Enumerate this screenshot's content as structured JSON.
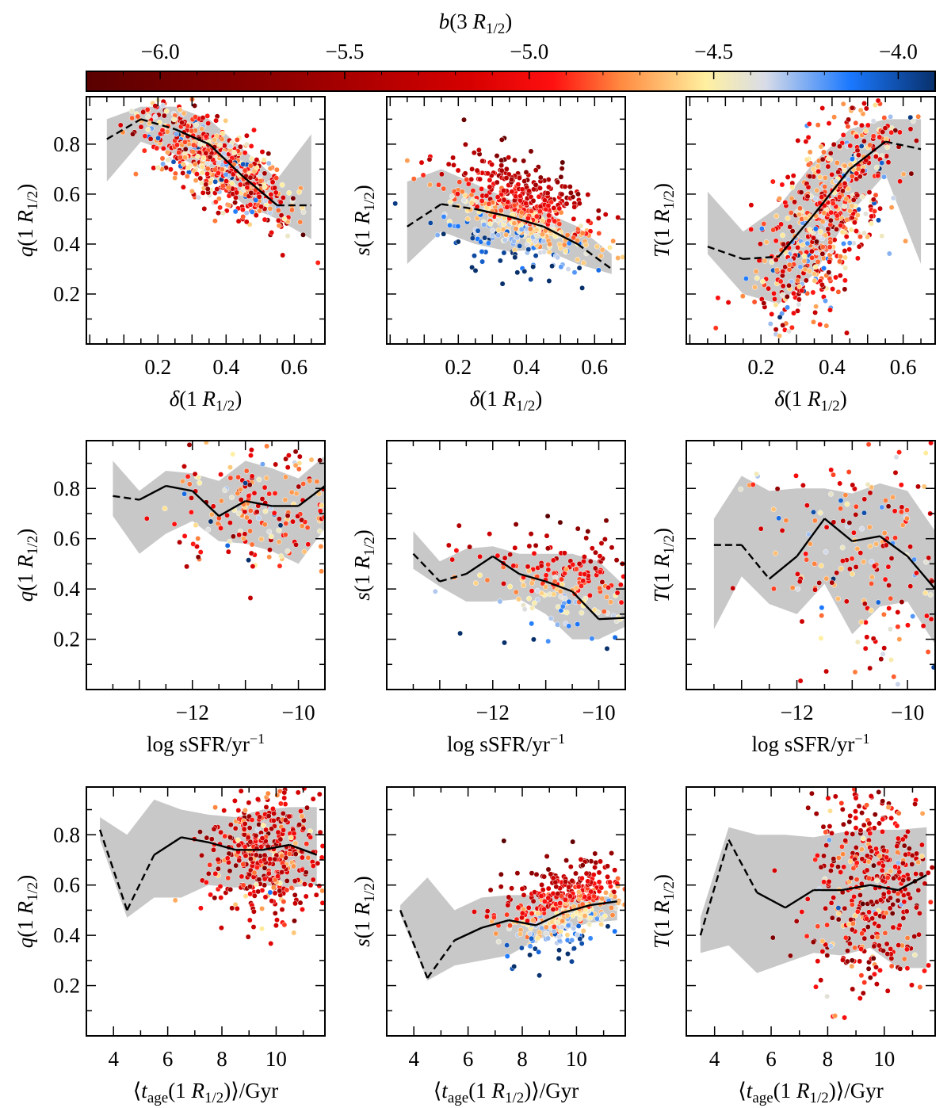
{
  "colorbar": {
    "label": "b(3 R1/2)",
    "label_parts": {
      "func": "b",
      "arg_num": "3 ",
      "arg_var": "R",
      "sub": "1/2"
    },
    "range": [
      -6.2,
      -3.9
    ],
    "ticks": [
      -6.0,
      -5.5,
      -5.0,
      -4.5,
      -4.0
    ],
    "tick_labels": [
      "−6.0",
      "−5.5",
      "−5.0",
      "−4.5",
      "−4.0"
    ],
    "colormap_stops": [
      {
        "v": 0.0,
        "c": "#5a0000"
      },
      {
        "v": 0.22,
        "c": "#8c0000"
      },
      {
        "v": 0.45,
        "c": "#d60000"
      },
      {
        "v": 0.55,
        "c": "#ff1010"
      },
      {
        "v": 0.63,
        "c": "#ff8a40"
      },
      {
        "v": 0.73,
        "c": "#fff0a0"
      },
      {
        "v": 0.8,
        "c": "#d8dce8"
      },
      {
        "v": 0.9,
        "c": "#1a78ff"
      },
      {
        "v": 1.0,
        "c": "#08306b"
      }
    ]
  },
  "chart_data": [
    {
      "type": "scatter",
      "id": "q-vs-delta",
      "xlabel": "δ(1 R1/2)",
      "ylabel": "q(1 R1/2)",
      "xlim": [
        -0.01,
        0.69
      ],
      "ylim": [
        0.0,
        0.99
      ],
      "xticks": [
        0.2,
        0.4,
        0.6
      ],
      "xtick_labels": [
        "0.2",
        "0.4",
        "0.6"
      ],
      "yticks": [
        0.2,
        0.4,
        0.6,
        0.8
      ],
      "ytick_labels": [
        "0.2",
        "0.4",
        "0.6",
        "0.8"
      ],
      "show_ytick_labels": true,
      "median_x": [
        0.05,
        0.15,
        0.25,
        0.35,
        0.45,
        0.55,
        0.65
      ],
      "median_y": [
        0.82,
        0.9,
        0.86,
        0.8,
        0.67,
        0.555,
        0.555
      ],
      "dashed_segments": [
        [
          0,
          1
        ],
        [
          1,
          2
        ],
        [
          5,
          6
        ]
      ],
      "band_upper": [
        0.9,
        0.95,
        0.95,
        0.9,
        0.78,
        0.66,
        0.84
      ],
      "band_lower": [
        0.65,
        0.81,
        0.76,
        0.68,
        0.56,
        0.5,
        0.42
      ],
      "scatter": {
        "n": 650,
        "x_center": 0.37,
        "x_spread": 0.11,
        "y_relation": "q = 1.02 - 0.8*x",
        "y_spread": 0.08,
        "note": "colored by b(3 R1/2); dense cloud declining from (0.2,0.9) to (0.55,0.5)"
      }
    },
    {
      "type": "scatter",
      "id": "s-vs-delta",
      "xlabel": "δ(1 R1/2)",
      "ylabel": "s(1 R1/2)",
      "xlim": [
        -0.01,
        0.69
      ],
      "ylim": [
        0.0,
        0.99
      ],
      "xticks": [
        0.2,
        0.4,
        0.6
      ],
      "xtick_labels": [
        "0.2",
        "0.4",
        "0.6"
      ],
      "yticks": [
        0.2,
        0.4,
        0.6,
        0.8
      ],
      "ytick_labels": [
        "0.2",
        "0.4",
        "0.6",
        "0.8"
      ],
      "show_ytick_labels": false,
      "median_x": [
        0.05,
        0.15,
        0.25,
        0.35,
        0.45,
        0.55,
        0.65
      ],
      "median_y": [
        0.47,
        0.56,
        0.54,
        0.51,
        0.47,
        0.4,
        0.3
      ],
      "dashed_segments": [
        [
          0,
          1
        ],
        [
          1,
          2
        ],
        [
          5,
          6
        ]
      ],
      "band_upper": [
        0.65,
        0.7,
        0.64,
        0.58,
        0.53,
        0.47,
        0.36
      ],
      "band_lower": [
        0.32,
        0.45,
        0.4,
        0.37,
        0.38,
        0.32,
        0.28
      ],
      "scatter": {
        "n": 600,
        "x_center": 0.38,
        "x_spread": 0.11,
        "y_relation": "s = 0.72 - 0.5*x",
        "y_spread": 0.1,
        "note": "red points upper, blue points lower (0.15-0.35)"
      }
    },
    {
      "type": "scatter",
      "id": "T-vs-delta",
      "xlabel": "δ(1 R1/2)",
      "ylabel": "T(1 R1/2)",
      "xlim": [
        -0.01,
        0.69
      ],
      "ylim": [
        0.0,
        0.99
      ],
      "xticks": [
        0.2,
        0.4,
        0.6
      ],
      "xtick_labels": [
        "0.2",
        "0.4",
        "0.6"
      ],
      "yticks": [
        0.2,
        0.4,
        0.6,
        0.8
      ],
      "ytick_labels": [
        "0.2",
        "0.4",
        "0.6",
        "0.8"
      ],
      "show_ytick_labels": false,
      "median_x": [
        0.05,
        0.15,
        0.25,
        0.35,
        0.45,
        0.55,
        0.65
      ],
      "median_y": [
        0.39,
        0.34,
        0.35,
        0.52,
        0.7,
        0.81,
        0.78
      ],
      "dashed_segments": [
        [
          0,
          1
        ],
        [
          1,
          2
        ],
        [
          5,
          6
        ]
      ],
      "band_upper": [
        0.61,
        0.45,
        0.55,
        0.73,
        0.86,
        0.9,
        0.9
      ],
      "band_lower": [
        0.36,
        0.2,
        0.16,
        0.28,
        0.52,
        0.68,
        0.32
      ],
      "scatter": {
        "n": 650,
        "x_center": 0.38,
        "x_spread": 0.1,
        "y_relation": "T = -0.1 + 1.6*x",
        "y_spread": 0.18,
        "note": "S-shaped rising trend, wide scatter"
      }
    },
    {
      "type": "scatter",
      "id": "q-vs-ssfr",
      "xlabel": "log sSFR/yr⁻¹",
      "ylabel": "q(1 R1/2)",
      "xlim": [
        -14.0,
        -9.5
      ],
      "ylim": [
        0.0,
        0.99
      ],
      "xticks": [
        -12,
        -10
      ],
      "xtick_labels": [
        "−12",
        "−10"
      ],
      "yticks": [
        0.2,
        0.4,
        0.6,
        0.8
      ],
      "ytick_labels": [
        "0.2",
        "0.4",
        "0.6",
        "0.8"
      ],
      "show_ytick_labels": true,
      "median_x": [
        -13.5,
        -13.0,
        -12.5,
        -12.0,
        -11.5,
        -11.0,
        -10.5,
        -10.0,
        -9.5
      ],
      "median_y": [
        0.77,
        0.755,
        0.81,
        0.79,
        0.69,
        0.75,
        0.73,
        0.73,
        0.81
      ],
      "dashed_segments": [
        [
          0,
          1
        ]
      ],
      "band_upper": [
        0.91,
        0.79,
        0.87,
        0.86,
        0.83,
        0.91,
        0.88,
        0.84,
        0.93
      ],
      "band_lower": [
        0.69,
        0.54,
        0.62,
        0.67,
        0.59,
        0.58,
        0.55,
        0.5,
        0.64
      ],
      "scatter": {
        "n": 220,
        "x_center": -10.6,
        "x_spread": 0.9,
        "y_relation": "q = 0.72",
        "y_spread": 0.13,
        "note": "sparse, mixed colors"
      }
    },
    {
      "type": "scatter",
      "id": "s-vs-ssfr",
      "xlabel": "log sSFR/yr⁻¹",
      "ylabel": "s(1 R1/2)",
      "xlim": [
        -14.0,
        -9.5
      ],
      "ylim": [
        0.0,
        0.99
      ],
      "xticks": [
        -12,
        -10
      ],
      "xtick_labels": [
        "−12",
        "−10"
      ],
      "yticks": [
        0.2,
        0.4,
        0.6,
        0.8
      ],
      "ytick_labels": [
        "0.2",
        "0.4",
        "0.6",
        "0.8"
      ],
      "show_ytick_labels": false,
      "median_x": [
        -13.5,
        -13.0,
        -12.5,
        -12.0,
        -11.5,
        -11.0,
        -10.5,
        -10.0,
        -9.5
      ],
      "median_y": [
        0.54,
        0.43,
        0.46,
        0.53,
        0.46,
        0.43,
        0.39,
        0.28,
        0.285
      ],
      "dashed_segments": [
        [
          0,
          1
        ],
        [
          1,
          2
        ]
      ],
      "band_upper": [
        0.63,
        0.51,
        0.56,
        0.57,
        0.54,
        0.54,
        0.54,
        0.51,
        0.41
      ],
      "band_lower": [
        0.48,
        0.41,
        0.35,
        0.35,
        0.36,
        0.3,
        0.2,
        0.2,
        0.25
      ],
      "scatter": {
        "n": 220,
        "x_center": -10.6,
        "x_spread": 0.9,
        "y_relation": "s = 0.05 - 0.035*x",
        "y_spread": 0.1,
        "note": "blue points cluster low at high sSFR"
      }
    },
    {
      "type": "scatter",
      "id": "T-vs-ssfr",
      "xlabel": "log sSFR/yr⁻¹",
      "ylabel": "T(1 R1/2)",
      "xlim": [
        -14.0,
        -9.5
      ],
      "ylim": [
        0.0,
        0.99
      ],
      "xticks": [
        -12,
        -10
      ],
      "xtick_labels": [
        "−12",
        "−10"
      ],
      "yticks": [
        0.2,
        0.4,
        0.6,
        0.8
      ],
      "ytick_labels": [
        "0.2",
        "0.4",
        "0.6",
        "0.8"
      ],
      "show_ytick_labels": false,
      "median_x": [
        -13.5,
        -13.0,
        -12.5,
        -12.0,
        -11.5,
        -11.0,
        -10.5,
        -10.0,
        -9.5
      ],
      "median_y": [
        0.575,
        0.575,
        0.44,
        0.53,
        0.68,
        0.59,
        0.61,
        0.53,
        0.4
      ],
      "dashed_segments": [
        [
          0,
          1
        ],
        [
          1,
          2
        ]
      ],
      "band_upper": [
        0.68,
        0.85,
        0.79,
        0.8,
        0.8,
        0.78,
        0.82,
        0.79,
        0.63
      ],
      "band_lower": [
        0.24,
        0.45,
        0.34,
        0.3,
        0.42,
        0.22,
        0.33,
        0.35,
        0.18
      ],
      "scatter": {
        "n": 220,
        "x_center": -10.6,
        "x_spread": 1.0,
        "y_relation": "T = 0.55",
        "y_spread": 0.22,
        "note": "very wide scatter"
      }
    },
    {
      "type": "scatter",
      "id": "q-vs-age",
      "xlabel": "⟨t_age(1 R1/2)⟩/Gyr",
      "ylabel": "q(1 R1/2)",
      "xlim": [
        3.0,
        11.8
      ],
      "ylim": [
        0.0,
        0.99
      ],
      "xticks": [
        4,
        6,
        8,
        10
      ],
      "xtick_labels": [
        "4",
        "6",
        "8",
        "10"
      ],
      "yticks": [
        0.2,
        0.4,
        0.6,
        0.8
      ],
      "ytick_labels": [
        "0.2",
        "0.4",
        "0.6",
        "0.8"
      ],
      "show_ytick_labels": true,
      "median_x": [
        3.5,
        4.5,
        5.5,
        6.5,
        7.5,
        8.5,
        9.5,
        10.5,
        11.5
      ],
      "median_y": [
        0.82,
        0.5,
        0.72,
        0.79,
        0.77,
        0.74,
        0.74,
        0.76,
        0.72
      ],
      "dashed_segments": [
        [
          0,
          1
        ],
        [
          1,
          2
        ]
      ],
      "band_upper": [
        0.87,
        0.8,
        0.94,
        0.9,
        0.88,
        0.87,
        0.9,
        0.91,
        0.91
      ],
      "band_lower": [
        0.78,
        0.47,
        0.55,
        0.55,
        0.6,
        0.59,
        0.6,
        0.59,
        0.6
      ],
      "scatter": {
        "n": 420,
        "x_center": 9.6,
        "x_spread": 1.0,
        "y_relation": "q = 0.72",
        "y_spread": 0.12,
        "note": "concentrated at old ages, mostly red"
      }
    },
    {
      "type": "scatter",
      "id": "s-vs-age",
      "xlabel": "⟨t_age(1 R1/2)⟩/Gyr",
      "ylabel": "s(1 R1/2)",
      "xlim": [
        3.0,
        11.8
      ],
      "ylim": [
        0.0,
        0.99
      ],
      "xticks": [
        4,
        6,
        8,
        10
      ],
      "xtick_labels": [
        "4",
        "6",
        "8",
        "10"
      ],
      "yticks": [
        0.2,
        0.4,
        0.6,
        0.8
      ],
      "ytick_labels": [
        "0.2",
        "0.4",
        "0.6",
        "0.8"
      ],
      "show_ytick_labels": false,
      "median_x": [
        3.5,
        4.5,
        5.5,
        6.5,
        7.5,
        8.5,
        9.5,
        10.5,
        11.5
      ],
      "median_y": [
        0.5,
        0.23,
        0.38,
        0.43,
        0.46,
        0.44,
        0.49,
        0.52,
        0.535
      ],
      "dashed_segments": [
        [
          0,
          1
        ],
        [
          1,
          2
        ]
      ],
      "band_upper": [
        0.52,
        0.63,
        0.5,
        0.55,
        0.56,
        0.56,
        0.56,
        0.56,
        0.55
      ],
      "band_lower": [
        0.48,
        0.22,
        0.28,
        0.3,
        0.32,
        0.38,
        0.42,
        0.45,
        0.46
      ],
      "scatter": {
        "n": 420,
        "x_center": 9.5,
        "x_spread": 1.1,
        "y_relation": "s = 0.25 + 0.028*x",
        "y_spread": 0.09,
        "note": "red high, blue low"
      }
    },
    {
      "type": "scatter",
      "id": "T-vs-age",
      "xlabel": "⟨t_age(1 R1/2)⟩/Gyr",
      "ylabel": "T(1 R1/2)",
      "xlim": [
        3.0,
        11.8
      ],
      "ylim": [
        0.0,
        0.99
      ],
      "xticks": [
        4,
        6,
        8,
        10
      ],
      "xtick_labels": [
        "4",
        "6",
        "8",
        "10"
      ],
      "yticks": [
        0.2,
        0.4,
        0.6,
        0.8
      ],
      "ytick_labels": [
        "0.2",
        "0.4",
        "0.6",
        "0.8"
      ],
      "show_ytick_labels": false,
      "median_x": [
        3.5,
        4.5,
        5.5,
        6.5,
        7.5,
        8.5,
        9.5,
        10.5,
        11.5
      ],
      "median_y": [
        0.4,
        0.78,
        0.57,
        0.51,
        0.58,
        0.58,
        0.6,
        0.58,
        0.64
      ],
      "dashed_segments": [
        [
          0,
          1
        ],
        [
          1,
          2
        ]
      ],
      "band_upper": [
        0.47,
        0.83,
        0.8,
        0.8,
        0.79,
        0.81,
        0.82,
        0.82,
        0.83
      ],
      "band_lower": [
        0.33,
        0.36,
        0.25,
        0.29,
        0.33,
        0.32,
        0.35,
        0.27,
        0.27
      ],
      "scatter": {
        "n": 420,
        "x_center": 9.5,
        "x_spread": 1.1,
        "y_relation": "T = 0.6",
        "y_spread": 0.22,
        "note": "very wide vertical scatter, mostly red"
      }
    }
  ]
}
